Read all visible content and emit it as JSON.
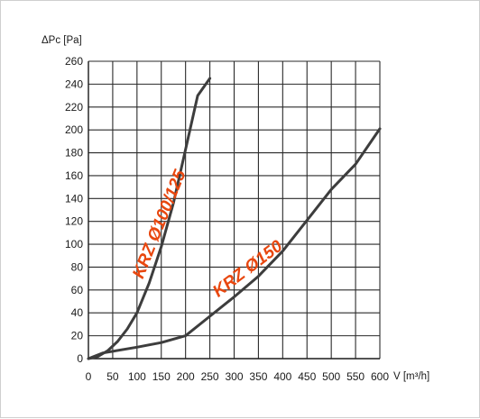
{
  "chart_data": {
    "type": "line",
    "ylabel": "ΔPc [Pa]",
    "xlabel": "V [m³/h]",
    "xlim": [
      0,
      600
    ],
    "ylim": [
      0,
      260
    ],
    "xticks": [
      0,
      50,
      100,
      150,
      200,
      250,
      300,
      350,
      400,
      450,
      500,
      550,
      600
    ],
    "yticks": [
      0,
      20,
      40,
      60,
      80,
      100,
      120,
      140,
      160,
      180,
      200,
      220,
      240,
      260
    ],
    "grid": true,
    "series": [
      {
        "name": "KRZ Ø100/125",
        "color": "#3d3d3d",
        "x": [
          0,
          20,
          40,
          60,
          80,
          100,
          125,
          150,
          175,
          200,
          225,
          250
        ],
        "y": [
          0,
          2,
          7,
          15,
          26,
          40,
          66,
          98,
          136,
          183,
          230,
          245
        ]
      },
      {
        "name": "KRZ Ø150",
        "color": "#3d3d3d",
        "x": [
          0,
          30,
          100,
          150,
          200,
          250,
          300,
          350,
          400,
          450,
          500,
          550,
          600
        ],
        "y": [
          0,
          5,
          10,
          14,
          20,
          37,
          54,
          72,
          94,
          121,
          148,
          170,
          201
        ]
      }
    ],
    "label_color": "#e8470f"
  }
}
